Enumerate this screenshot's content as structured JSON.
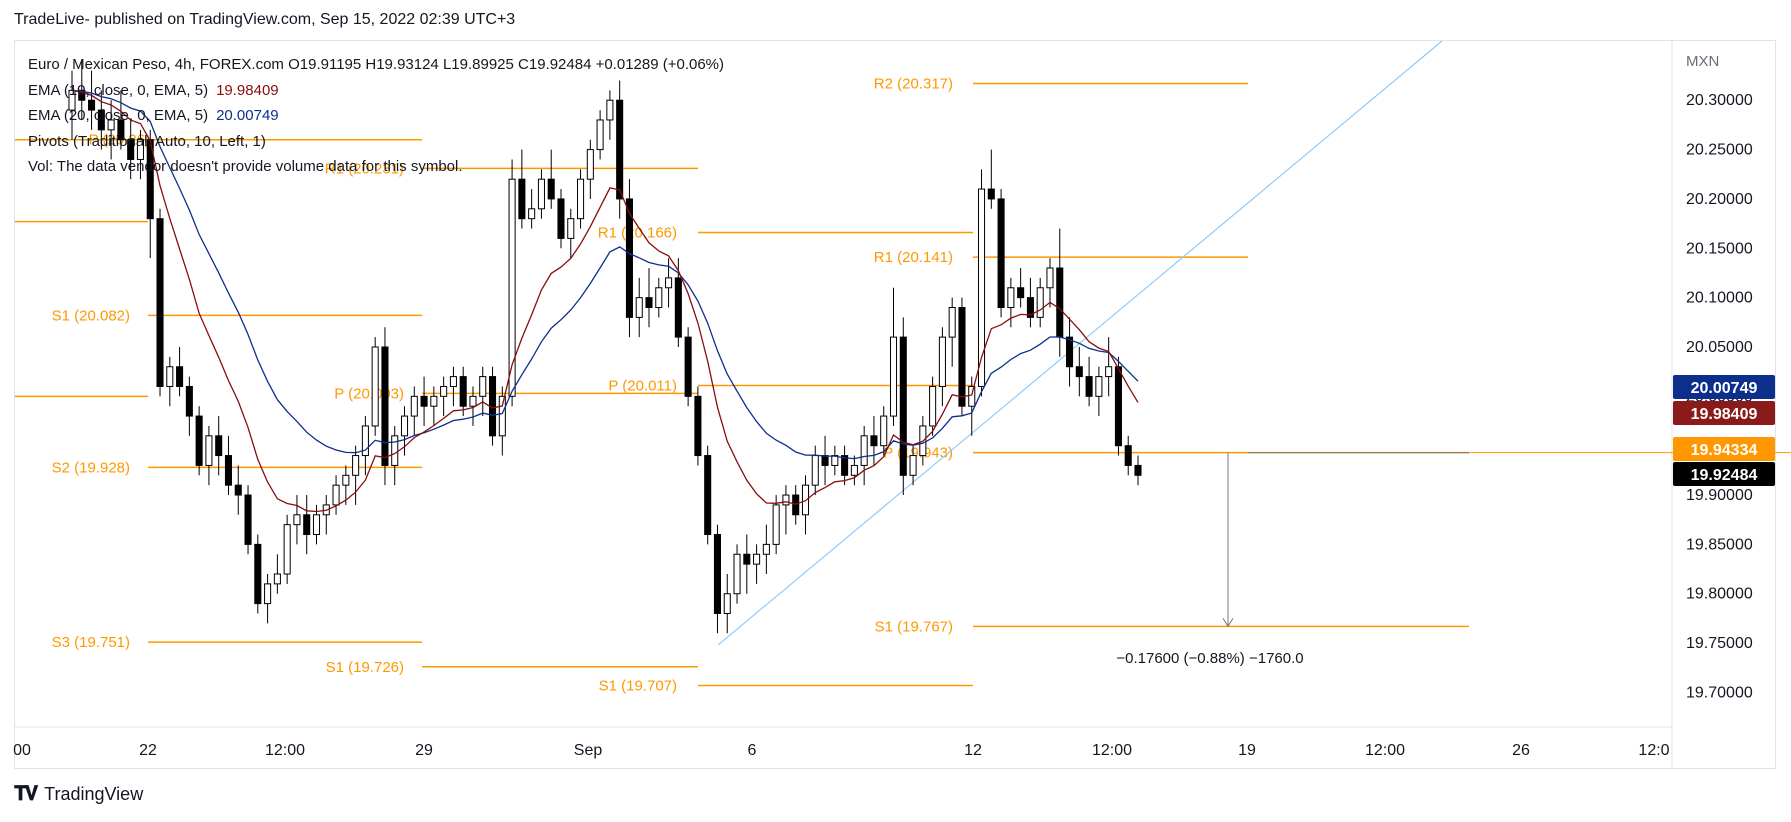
{
  "header": {
    "publish_line": "TradeLive- published on TradingView.com, Sep 15, 2022 02:39 UTC+3"
  },
  "footer": {
    "brand": "TradingView",
    "logo_icon": "tradingview-logo-icon"
  },
  "legend": {
    "symbol_line": "Euro / Mexican Peso, 4h, FOREX.com  O19.91195  H19.93124  L19.89925  C19.92484  +0.01289 (+0.06%)",
    "ema10_label": "EMA (10, close, 0, EMA, 5)",
    "ema10_value": "19.98409",
    "ema20_label": "EMA (20, close, 0, EMA, 5)",
    "ema20_value": "20.00749",
    "pivots_label": "Pivots (Traditional, Auto, 10, Left, 1)",
    "vol_label": "Vol: The data vendor doesn't provide volume data for this symbol."
  },
  "colors": {
    "up_candle": "#ffffff",
    "down_candle": "#000000",
    "ema10": "#880e0e",
    "ema20": "#0d2f8c",
    "pivot": "#ff9800",
    "trendline": "#90caf9",
    "ema20_badge": "#0d2f8c",
    "ema10_badge": "#8b1a1a",
    "pivot_badge": "#ff9800",
    "price_badge": "#000000"
  },
  "chart_data": {
    "type": "candlestick",
    "currency_label": "MXN",
    "ylim": [
      19.665,
      20.36
    ],
    "y_ticks": [
      "20.30000",
      "20.25000",
      "20.20000",
      "20.15000",
      "20.10000",
      "20.05000",
      "20.00000",
      "19.95000",
      "19.90000",
      "19.85000",
      "19.80000",
      "19.75000",
      "19.70000"
    ],
    "x_ticks": [
      "00",
      "22",
      "12:00",
      "29",
      "Sep",
      "6",
      "12",
      "12:00",
      "19",
      "12:00",
      "26",
      "12:0"
    ],
    "price_badges": [
      {
        "value": "20.00749",
        "series": "EMA 20"
      },
      {
        "value": "19.98409",
        "series": "EMA 10"
      },
      {
        "value": "19.94334",
        "series": "Pivot"
      },
      {
        "value": "19.92484",
        "series": "Last"
      }
    ],
    "pivot_levels": [
      {
        "label": "P (20.26)",
        "value": 20.26
      },
      {
        "label": "R1 (20.231)",
        "value": 20.231
      },
      {
        "label": "S1 (20.082)",
        "value": 20.082
      },
      {
        "label": "P (20.003)",
        "value": 20.003
      },
      {
        "label": "S2 (19.928)",
        "value": 19.928
      },
      {
        "label": "S3 (19.751)",
        "value": 19.751
      },
      {
        "label": "S1 (19.726)",
        "value": 19.726
      },
      {
        "label": "R1 (20.166)",
        "value": 20.166
      },
      {
        "label": "P (20.011)",
        "value": 20.011
      },
      {
        "label": "S1 (19.707)",
        "value": 19.707
      },
      {
        "label": "R2 (20.317)",
        "value": 20.317
      },
      {
        "label": "R1 (20.141)",
        "value": 20.141
      },
      {
        "label": "P (19.943)",
        "value": 19.943
      },
      {
        "label": "S1 (19.767)",
        "value": 19.767
      }
    ],
    "measure_label": "−0.17600 (−0.88%) −1760.0",
    "candles": [
      [
        20.29,
        20.33,
        20.26,
        20.31
      ],
      [
        20.31,
        20.34,
        20.28,
        20.3
      ],
      [
        20.3,
        20.33,
        20.27,
        20.29
      ],
      [
        20.29,
        20.31,
        20.25,
        20.27
      ],
      [
        20.27,
        20.3,
        20.24,
        20.28
      ],
      [
        20.28,
        20.31,
        20.25,
        20.26
      ],
      [
        20.26,
        20.28,
        20.22,
        20.24
      ],
      [
        20.24,
        20.27,
        20.22,
        20.26
      ],
      [
        20.26,
        20.27,
        20.14,
        20.18
      ],
      [
        20.18,
        20.19,
        20.0,
        20.01
      ],
      [
        20.01,
        20.04,
        19.99,
        20.03
      ],
      [
        20.03,
        20.05,
        20.0,
        20.01
      ],
      [
        20.01,
        20.02,
        19.96,
        19.98
      ],
      [
        19.98,
        19.99,
        19.92,
        19.93
      ],
      [
        19.93,
        19.97,
        19.91,
        19.96
      ],
      [
        19.96,
        19.98,
        19.92,
        19.94
      ],
      [
        19.94,
        19.96,
        19.9,
        19.91
      ],
      [
        19.91,
        19.93,
        19.88,
        19.9
      ],
      [
        19.9,
        19.91,
        19.84,
        19.85
      ],
      [
        19.85,
        19.86,
        19.78,
        19.79
      ],
      [
        19.79,
        19.82,
        19.77,
        19.81
      ],
      [
        19.81,
        19.84,
        19.8,
        19.82
      ],
      [
        19.82,
        19.88,
        19.81,
        19.87
      ],
      [
        19.87,
        19.9,
        19.85,
        19.88
      ],
      [
        19.88,
        19.9,
        19.84,
        19.86
      ],
      [
        19.86,
        19.89,
        19.85,
        19.88
      ],
      [
        19.88,
        19.9,
        19.86,
        19.89
      ],
      [
        19.89,
        19.92,
        19.88,
        19.91
      ],
      [
        19.91,
        19.93,
        19.89,
        19.92
      ],
      [
        19.92,
        19.95,
        19.89,
        19.94
      ],
      [
        19.94,
        19.98,
        19.92,
        19.97
      ],
      [
        19.97,
        20.06,
        19.96,
        20.05
      ],
      [
        20.05,
        20.07,
        19.91,
        19.93
      ],
      [
        19.93,
        19.97,
        19.91,
        19.96
      ],
      [
        19.96,
        19.99,
        19.94,
        19.98
      ],
      [
        19.98,
        20.01,
        19.96,
        20.0
      ],
      [
        20.0,
        20.02,
        19.97,
        19.99
      ],
      [
        19.99,
        20.01,
        19.97,
        20.0
      ],
      [
        20.0,
        20.02,
        19.98,
        20.01
      ],
      [
        20.01,
        20.03,
        19.99,
        20.02
      ],
      [
        20.02,
        20.03,
        19.98,
        19.99
      ],
      [
        19.99,
        20.01,
        19.97,
        20.0
      ],
      [
        20.0,
        20.03,
        19.98,
        20.02
      ],
      [
        20.02,
        20.03,
        19.95,
        19.96
      ],
      [
        19.96,
        20.01,
        19.94,
        20.0
      ],
      [
        20.0,
        20.24,
        19.99,
        20.22
      ],
      [
        20.22,
        20.25,
        20.17,
        20.18
      ],
      [
        20.18,
        20.21,
        20.17,
        20.19
      ],
      [
        20.19,
        20.23,
        20.18,
        20.22
      ],
      [
        20.22,
        20.25,
        20.19,
        20.2
      ],
      [
        20.2,
        20.21,
        20.15,
        20.16
      ],
      [
        20.16,
        20.19,
        20.14,
        20.18
      ],
      [
        20.18,
        20.23,
        20.17,
        20.22
      ],
      [
        20.22,
        20.26,
        20.2,
        20.25
      ],
      [
        20.25,
        20.29,
        20.24,
        20.28
      ],
      [
        20.28,
        20.31,
        20.26,
        20.3
      ],
      [
        20.3,
        20.32,
        20.18,
        20.2
      ],
      [
        20.2,
        20.22,
        20.06,
        20.08
      ],
      [
        20.08,
        20.12,
        20.06,
        20.1
      ],
      [
        20.1,
        20.13,
        20.07,
        20.09
      ],
      [
        20.09,
        20.12,
        20.08,
        20.11
      ],
      [
        20.11,
        20.14,
        20.09,
        20.12
      ],
      [
        20.12,
        20.14,
        20.05,
        20.06
      ],
      [
        20.06,
        20.07,
        19.99,
        20.0
      ],
      [
        20.0,
        20.01,
        19.93,
        19.94
      ],
      [
        19.94,
        19.95,
        19.85,
        19.86
      ],
      [
        19.86,
        19.87,
        19.76,
        19.78
      ],
      [
        19.78,
        19.82,
        19.76,
        19.8
      ],
      [
        19.8,
        19.85,
        19.79,
        19.84
      ],
      [
        19.84,
        19.86,
        19.8,
        19.83
      ],
      [
        19.83,
        19.85,
        19.81,
        19.84
      ],
      [
        19.84,
        19.87,
        19.82,
        19.85
      ],
      [
        19.85,
        19.9,
        19.84,
        19.89
      ],
      [
        19.89,
        19.91,
        19.86,
        19.9
      ],
      [
        19.9,
        19.91,
        19.87,
        19.88
      ],
      [
        19.88,
        19.92,
        19.86,
        19.91
      ],
      [
        19.91,
        19.95,
        19.9,
        19.94
      ],
      [
        19.94,
        19.96,
        19.91,
        19.93
      ],
      [
        19.93,
        19.95,
        19.92,
        19.94
      ],
      [
        19.94,
        19.95,
        19.91,
        19.92
      ],
      [
        19.92,
        19.94,
        19.91,
        19.93
      ],
      [
        19.93,
        19.97,
        19.91,
        19.96
      ],
      [
        19.96,
        19.98,
        19.93,
        19.95
      ],
      [
        19.95,
        19.99,
        19.94,
        19.98
      ],
      [
        19.98,
        20.11,
        19.97,
        20.06
      ],
      [
        20.06,
        20.08,
        19.9,
        19.92
      ],
      [
        19.92,
        19.95,
        19.91,
        19.94
      ],
      [
        19.94,
        19.98,
        19.93,
        19.97
      ],
      [
        19.97,
        20.02,
        19.96,
        20.01
      ],
      [
        20.01,
        20.07,
        19.99,
        20.06
      ],
      [
        20.06,
        20.1,
        20.03,
        20.09
      ],
      [
        20.09,
        20.1,
        19.98,
        19.99
      ],
      [
        19.99,
        20.02,
        19.96,
        20.01
      ],
      [
        20.01,
        20.23,
        20.0,
        20.21
      ],
      [
        20.21,
        20.25,
        20.19,
        20.2
      ],
      [
        20.2,
        20.21,
        20.08,
        20.09
      ],
      [
        20.09,
        20.12,
        20.07,
        20.11
      ],
      [
        20.11,
        20.13,
        20.09,
        20.1
      ],
      [
        20.1,
        20.12,
        20.07,
        20.08
      ],
      [
        20.08,
        20.12,
        20.07,
        20.11
      ],
      [
        20.11,
        20.14,
        20.09,
        20.13
      ],
      [
        20.13,
        20.17,
        20.04,
        20.06
      ],
      [
        20.06,
        20.08,
        20.01,
        20.03
      ],
      [
        20.03,
        20.05,
        20.0,
        20.02
      ],
      [
        20.02,
        20.04,
        19.99,
        20.0
      ],
      [
        20.0,
        20.03,
        19.98,
        20.02
      ],
      [
        20.02,
        20.06,
        20.0,
        20.03
      ],
      [
        20.03,
        20.04,
        19.94,
        19.95
      ],
      [
        19.95,
        19.96,
        19.92,
        19.93
      ],
      [
        19.93,
        19.94,
        19.91,
        19.92
      ]
    ]
  }
}
